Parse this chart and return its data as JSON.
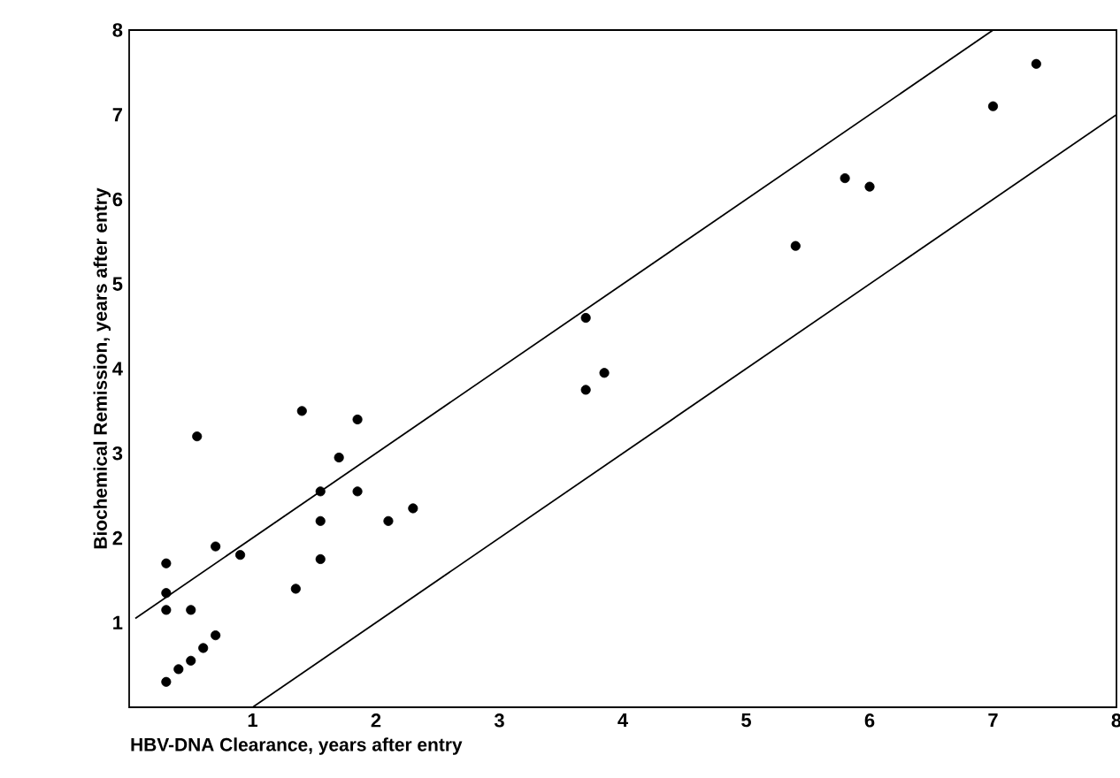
{
  "chart_data": {
    "type": "scatter",
    "xlabel": "HBV-DNA Clearance, years after entry",
    "ylabel": "Biochemical Remission, years after entry",
    "xlim": [
      0,
      8
    ],
    "ylim": [
      0,
      8
    ],
    "xticks": [
      1,
      2,
      3,
      4,
      5,
      6,
      7,
      8
    ],
    "yticks": [
      1,
      2,
      3,
      4,
      5,
      6,
      7,
      8
    ],
    "series": [
      {
        "marker": "circle",
        "color": "#000000",
        "x": [
          0.3,
          0.4,
          0.5,
          0.6,
          0.7,
          0.3,
          0.3,
          0.3,
          0.5,
          0.55,
          0.7,
          0.9,
          1.35,
          1.4,
          1.55,
          1.55,
          1.55,
          1.7,
          1.85,
          1.85,
          2.1,
          2.3,
          3.7,
          3.85,
          3.7,
          5.4,
          5.8,
          6.0,
          7.0,
          7.35
        ],
        "values": [
          0.3,
          0.45,
          0.55,
          0.7,
          0.85,
          1.7,
          1.35,
          1.15,
          1.15,
          3.2,
          1.9,
          1.8,
          1.4,
          3.5,
          2.55,
          2.2,
          1.75,
          2.95,
          3.4,
          2.55,
          2.2,
          2.35,
          4.6,
          3.95,
          3.75,
          5.45,
          6.25,
          6.15,
          7.1,
          7.6
        ]
      },
      {
        "type": "line",
        "marker": "none",
        "color": "#000000",
        "x": [
          0.05,
          7.0
        ],
        "values": [
          1.05,
          8.0
        ]
      },
      {
        "type": "line",
        "marker": "none",
        "color": "#000000",
        "x": [
          1.0,
          8.0
        ],
        "values": [
          0.0,
          7.0
        ]
      }
    ]
  }
}
